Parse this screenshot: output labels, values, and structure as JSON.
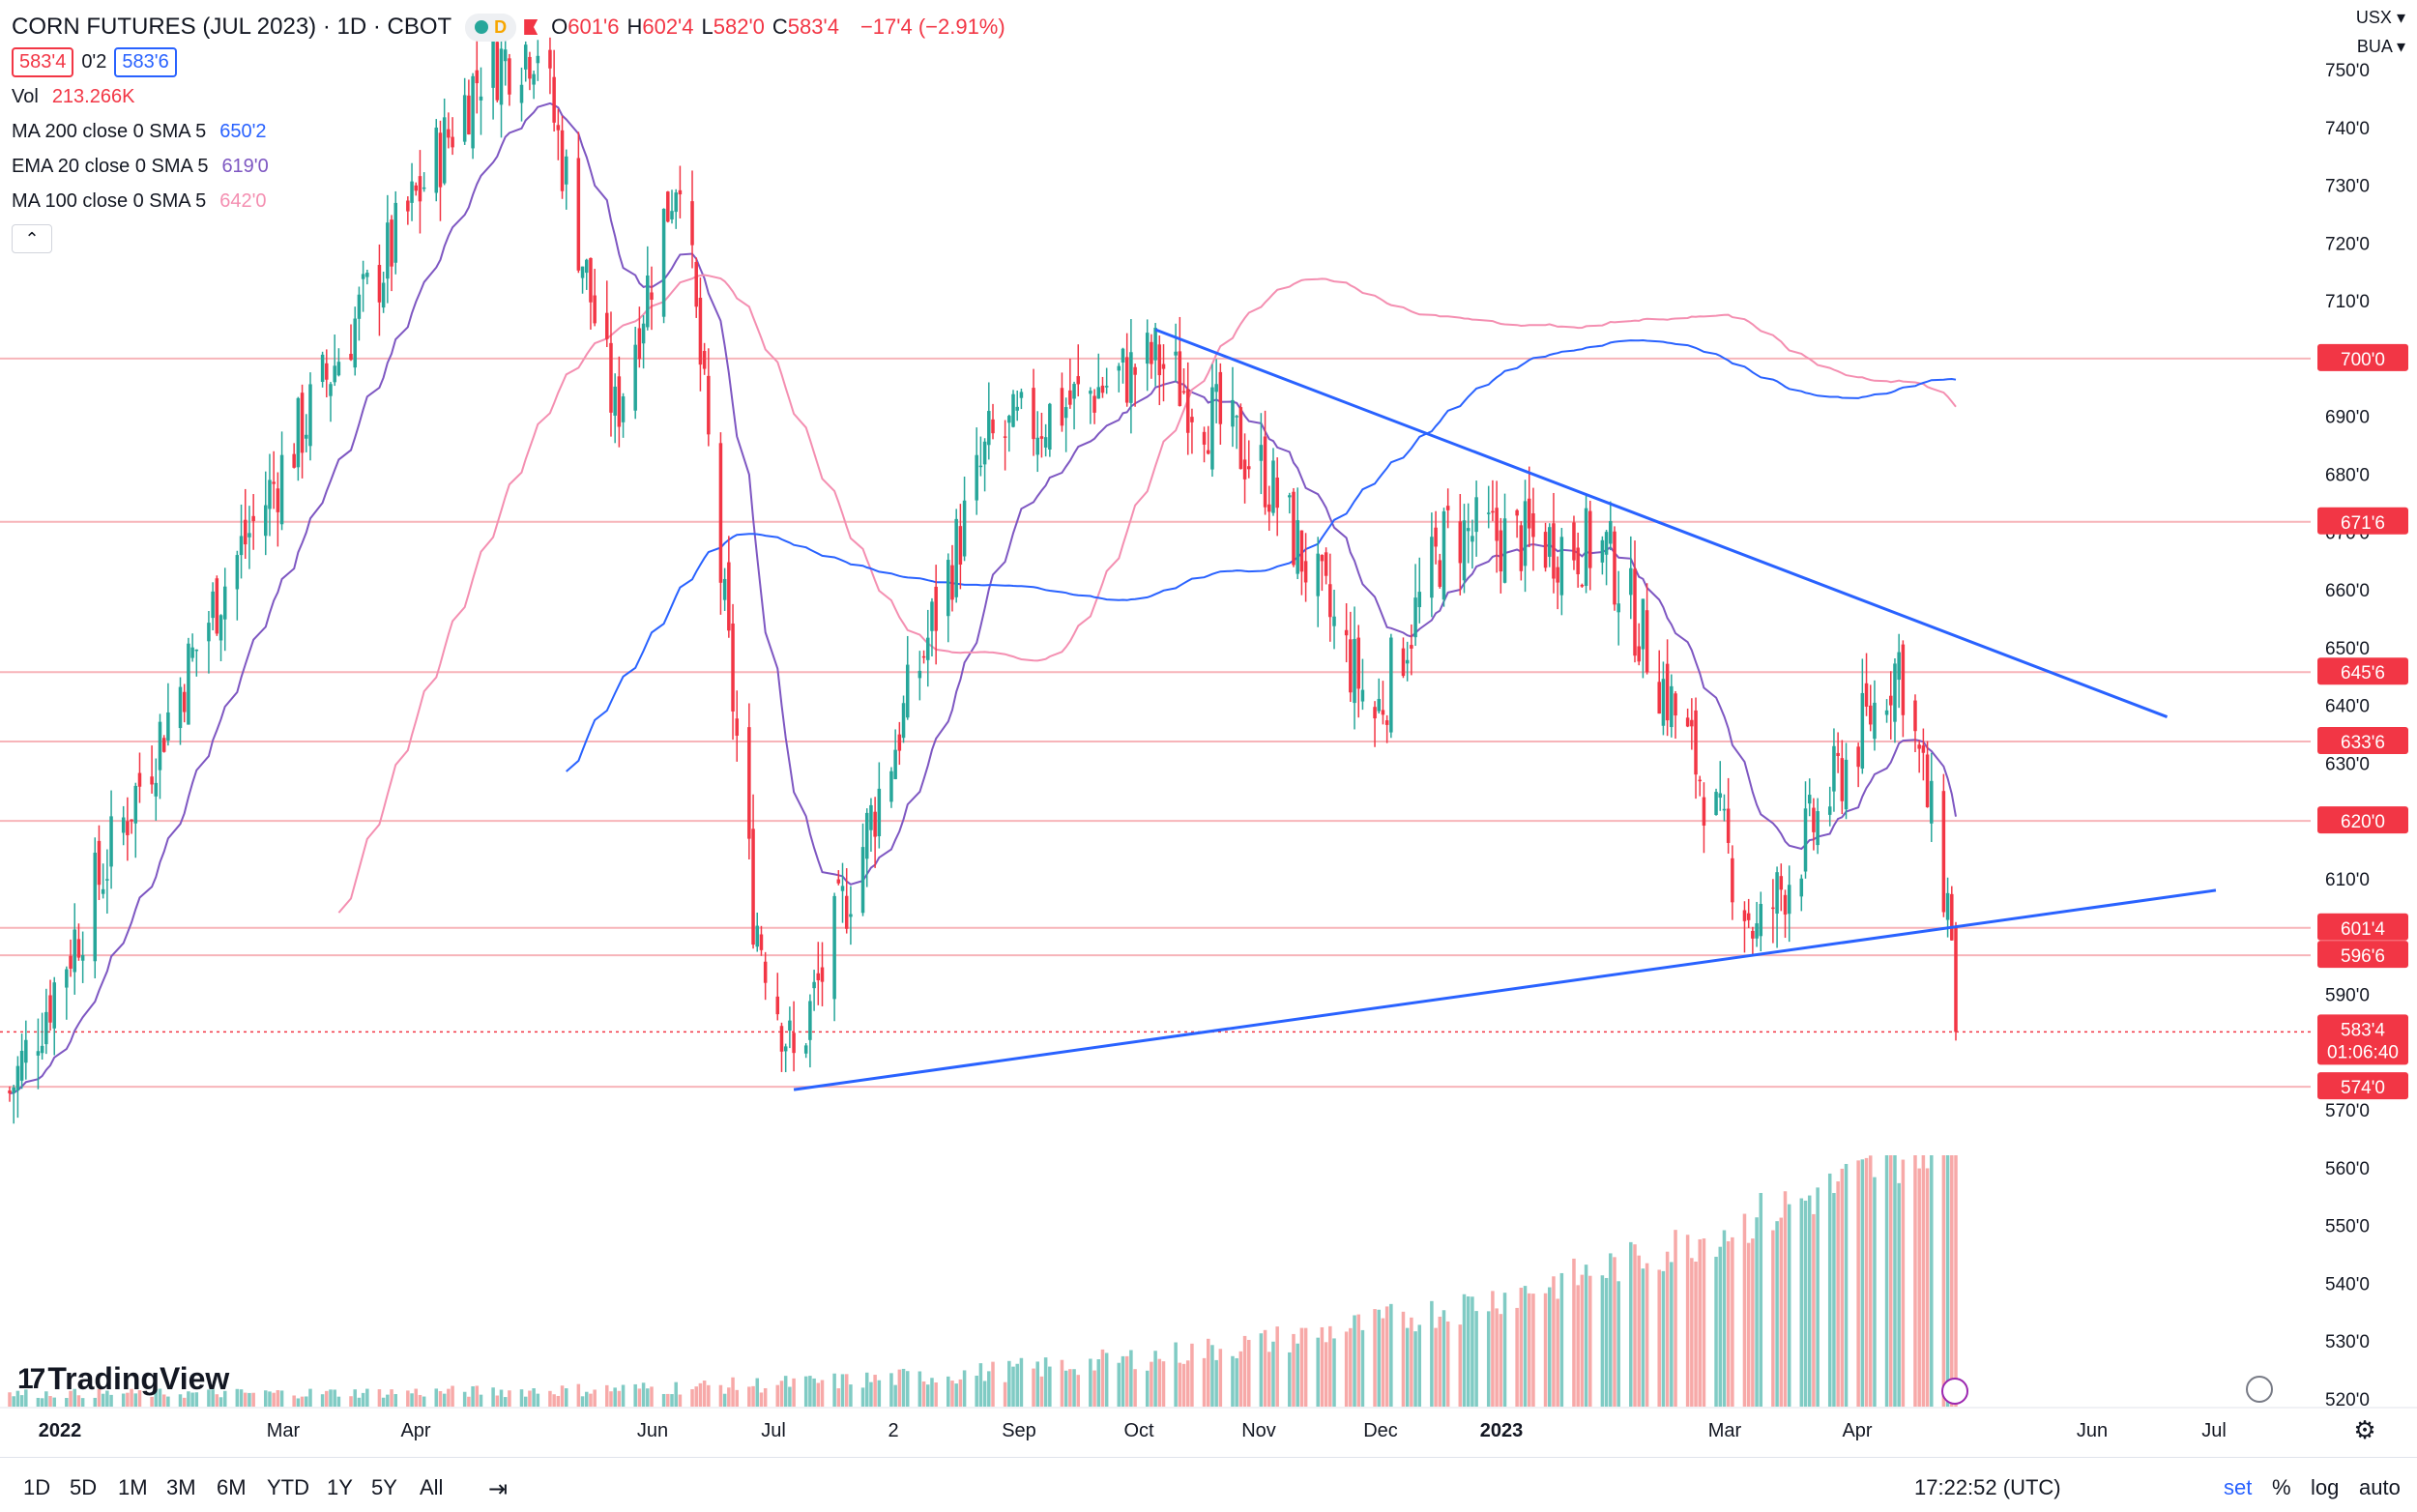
{
  "header": {
    "title": "CORN FUTURES (JUL 2023) · 1D · CBOT",
    "ohlc": [
      {
        "k": "O",
        "v": "601'6"
      },
      {
        "k": "H",
        "v": "602'4"
      },
      {
        "k": "L",
        "v": "582'0"
      },
      {
        "k": "C",
        "v": "583'4"
      }
    ],
    "change": "−17'4 (−2.91%)",
    "bid": "583'4",
    "spread": "0'2",
    "ask": "583'6",
    "currency": "USX",
    "currency_arrow": "▾",
    "session": "BUA",
    "collapse_icon": "chevron-up-icon",
    "collapse_glyph": "⌃"
  },
  "indicators": [
    {
      "name": "Vol",
      "value": "213.266K",
      "color": "#f23645"
    },
    {
      "name": "MA 200 close 0 SMA 5",
      "value": "650'2",
      "color": "#2962ff"
    },
    {
      "name": "EMA 20 close 0 SMA 5",
      "value": "619'0",
      "color": "#7e57c2"
    },
    {
      "name": "MA 100 close 0 SMA 5",
      "value": "642'0",
      "color": "#f48fb1"
    }
  ],
  "chart_data": {
    "type": "candlestick",
    "y_ticks": [
      "750'0",
      "740'0",
      "730'0",
      "720'0",
      "710'0",
      "690'0",
      "680'0",
      "670'0",
      "660'0",
      "650'0",
      "640'0",
      "630'0",
      "610'0",
      "590'0",
      "570'0",
      "560'0",
      "550'0",
      "540'0",
      "530'0",
      "520'0"
    ],
    "y_range": [
      518,
      758
    ],
    "x_ticks": [
      "2022",
      "Mar",
      "Apr",
      "Jun",
      "Jul",
      "2",
      "Sep",
      "Oct",
      "Nov",
      "Dec",
      "2023",
      "Mar",
      "Apr",
      "Jun",
      "Jul"
    ],
    "horizontal_levels": [
      {
        "price": 700.0,
        "label": "700'0"
      },
      {
        "price": 671.75,
        "label": "671'6"
      },
      {
        "price": 645.75,
        "label": "645'6"
      },
      {
        "price": 633.75,
        "label": "633'6"
      },
      {
        "price": 620.0,
        "label": "620'0"
      },
      {
        "price": 601.5,
        "label": "601'4"
      },
      {
        "price": 596.75,
        "label": "596'6"
      },
      {
        "price": 574.0,
        "label": "574'0"
      }
    ],
    "last_price": {
      "label": "583'4",
      "countdown": "01:06:40",
      "price": 583.5
    },
    "trendlines": [
      {
        "from": {
          "date": "2022-10-12",
          "price": 705
        },
        "to": {
          "date": "2023-06-18",
          "price": 638
        }
      },
      {
        "from": {
          "date": "2022-07-15",
          "price": 573.5
        },
        "to": {
          "date": "2023-06-30",
          "price": 608
        }
      }
    ],
    "key_closes": [
      {
        "date": "2022-01-03",
        "close": 573
      },
      {
        "date": "2022-02-24",
        "close": 660
      },
      {
        "date": "2022-04-29",
        "close": 750
      },
      {
        "date": "2022-05-13",
        "close": 755
      },
      {
        "date": "2022-06-01",
        "close": 690
      },
      {
        "date": "2022-06-17",
        "close": 735
      },
      {
        "date": "2022-07-05",
        "close": 605
      },
      {
        "date": "2022-07-15",
        "close": 578
      },
      {
        "date": "2022-09-01",
        "close": 685
      },
      {
        "date": "2022-10-12",
        "close": 700
      },
      {
        "date": "2022-11-08",
        "close": 680
      },
      {
        "date": "2022-12-05",
        "close": 638
      },
      {
        "date": "2022-12-23",
        "close": 670
      },
      {
        "date": "2023-01-31",
        "close": 667
      },
      {
        "date": "2023-02-22",
        "close": 630
      },
      {
        "date": "2023-03-09",
        "close": 600
      },
      {
        "date": "2023-04-13",
        "close": 648
      },
      {
        "date": "2023-04-21",
        "close": 620
      },
      {
        "date": "2023-04-26",
        "close": 602
      },
      {
        "date": "2023-04-27",
        "close": 583.5
      }
    ],
    "colors": {
      "up": "#26a69a",
      "down": "#f23645",
      "ma200": "#2962ff",
      "ema20": "#7e57c2",
      "ma100": "#f48fb1",
      "trend": "#2962ff",
      "level": "#f7b4b9"
    }
  },
  "bottom_bar": {
    "timeframes": [
      "1D",
      "5D",
      "1M",
      "3M",
      "6M",
      "YTD",
      "1Y",
      "5Y",
      "All"
    ],
    "compare_icon": "calendar-range-icon",
    "time": "17:22:52 (UTC)",
    "set": "set",
    "percent": "%",
    "log": "log",
    "auto": "auto",
    "settings_icon": "gear-icon"
  },
  "branding": {
    "logo_text": "TradingView",
    "logo_mark": "17"
  },
  "icons": {
    "lightning": "lightning-icon",
    "dividend": "dividends-icon"
  }
}
